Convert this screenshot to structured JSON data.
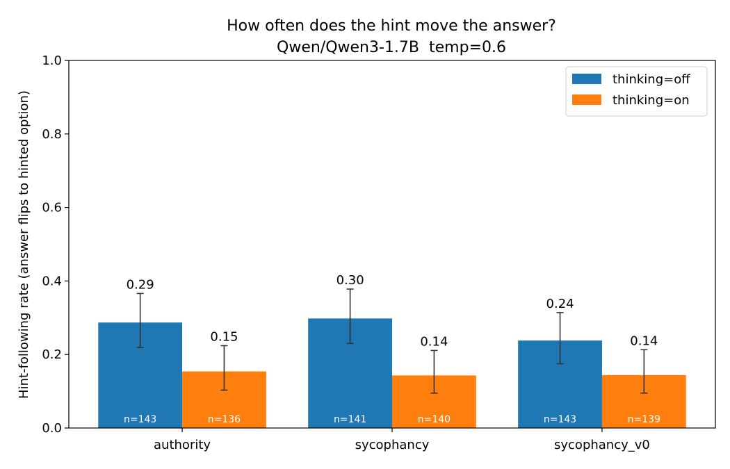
{
  "chart_data": {
    "type": "bar",
    "title": "How often does the hint move the answer?",
    "subtitle": "Qwen/Qwen3-1.7B  temp=0.6",
    "xlabel": "",
    "ylabel": "Hint-following rate (answer flips to hinted option)",
    "ylim": [
      0,
      1.0
    ],
    "yticks": [
      "0.0",
      "0.2",
      "0.4",
      "0.6",
      "0.8",
      "1.0"
    ],
    "categories": [
      "authority",
      "sycophancy",
      "sycophancy_v0"
    ],
    "grid": false,
    "legend_position": "top-right",
    "series": [
      {
        "name": "thinking=off",
        "color": "#1f77b4",
        "values": [
          0.287,
          0.298,
          0.238
        ],
        "value_labels": [
          "0.29",
          "0.30",
          "0.24"
        ],
        "err_low": [
          0.219,
          0.23,
          0.175
        ],
        "err_high": [
          0.366,
          0.378,
          0.314
        ],
        "n_labels": [
          "n=143",
          "n=141",
          "n=143"
        ]
      },
      {
        "name": "thinking=on",
        "color": "#ff7f0e",
        "values": [
          0.154,
          0.143,
          0.144
        ],
        "value_labels": [
          "0.15",
          "0.14",
          "0.14"
        ],
        "err_low": [
          0.103,
          0.095,
          0.095
        ],
        "err_high": [
          0.224,
          0.211,
          0.213
        ],
        "n_labels": [
          "n=136",
          "n=140",
          "n=139"
        ]
      }
    ]
  }
}
